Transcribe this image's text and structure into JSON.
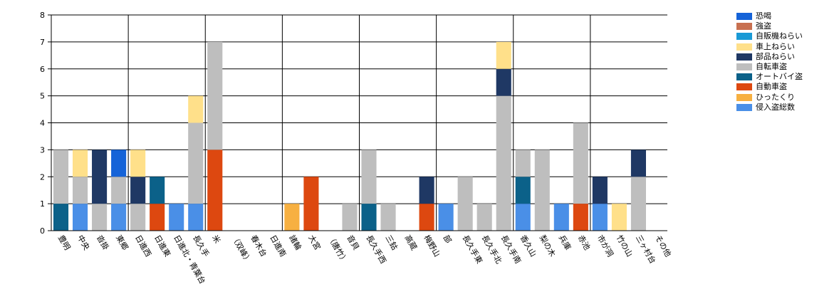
{
  "chart_data": {
    "type": "bar",
    "stacked": true,
    "title": "",
    "xlabel": "",
    "ylabel": "",
    "ylim": [
      0,
      8
    ],
    "yticks": [
      0,
      1,
      2,
      3,
      4,
      5,
      6,
      7,
      8
    ],
    "grid": true,
    "legend_position": "top-right",
    "categories": [
      "豊明",
      "中央",
      "沓掛",
      "東郷",
      "日進西",
      "日進東",
      "日進北・青葉台",
      "長久手",
      "米",
      "（双峰）",
      "春木台",
      "日進南",
      "諸輪",
      "大宮",
      "（唐竹）",
      "音貝",
      "長久手西",
      "三鈷",
      "高蔵",
      "梅野山",
      "部",
      "長久手東",
      "長久手北",
      "長久手南",
      "香久山",
      "梨の木",
      "兵庫",
      "赤池",
      "市が洞",
      "竹の山",
      "三ヶ村台",
      "その他"
    ],
    "series": [
      {
        "name": "侵入盗総数",
        "color": "#4a8fe7",
        "values": [
          0,
          1,
          0,
          1,
          0,
          0,
          1,
          1,
          0,
          0,
          0,
          0,
          0,
          0,
          0,
          0,
          0,
          0,
          0,
          0,
          1,
          0,
          0,
          0,
          1,
          0,
          1,
          0,
          1,
          0,
          0,
          0
        ]
      },
      {
        "name": "ひったくり",
        "color": "#f7b041",
        "values": [
          0,
          0,
          0,
          0,
          0,
          0,
          0,
          0,
          0,
          0,
          0,
          0,
          1,
          0,
          0,
          0,
          0,
          0,
          0,
          0,
          0,
          0,
          0,
          0,
          0,
          0,
          0,
          0,
          0,
          0,
          0,
          0
        ]
      },
      {
        "name": "自動車盗",
        "color": "#dd4810",
        "values": [
          0,
          0,
          0,
          0,
          0,
          1,
          0,
          0,
          3,
          0,
          0,
          0,
          0,
          2,
          0,
          0,
          0,
          0,
          0,
          1,
          0,
          0,
          0,
          0,
          0,
          0,
          0,
          1,
          0,
          0,
          0,
          0
        ]
      },
      {
        "name": "オートバイ盗",
        "color": "#0b6189",
        "values": [
          1,
          0,
          0,
          0,
          0,
          1,
          0,
          0,
          0,
          0,
          0,
          0,
          0,
          0,
          0,
          0,
          1,
          0,
          0,
          0,
          0,
          0,
          0,
          0,
          1,
          0,
          0,
          0,
          0,
          0,
          0,
          0
        ]
      },
      {
        "name": "自転車盗",
        "color": "#bebebe",
        "values": [
          2,
          1,
          1,
          1,
          1,
          0,
          0,
          3,
          4,
          0,
          0,
          0,
          0,
          0,
          0,
          1,
          2,
          1,
          0,
          0,
          0,
          2,
          1,
          5,
          1,
          3,
          0,
          3,
          0,
          0,
          2,
          0
        ]
      },
      {
        "name": "部品ねらい",
        "color": "#1f3864",
        "values": [
          0,
          0,
          2,
          0,
          1,
          0,
          0,
          0,
          0,
          0,
          0,
          0,
          0,
          0,
          0,
          0,
          0,
          0,
          0,
          1,
          0,
          0,
          0,
          1,
          0,
          0,
          0,
          0,
          1,
          0,
          1,
          0
        ]
      },
      {
        "name": "車上ねらい",
        "color": "#ffe08a",
        "values": [
          0,
          1,
          0,
          0,
          1,
          0,
          0,
          1,
          0,
          0,
          0,
          0,
          0,
          0,
          0,
          0,
          0,
          0,
          0,
          0,
          0,
          0,
          0,
          1,
          0,
          0,
          0,
          0,
          0,
          1,
          0,
          0
        ]
      },
      {
        "name": "自販機ねらい",
        "color": "#1a9ad6",
        "values": [
          0,
          0,
          0,
          0,
          0,
          0,
          0,
          0,
          0,
          0,
          0,
          0,
          0,
          0,
          0,
          0,
          0,
          0,
          0,
          0,
          0,
          0,
          0,
          0,
          0,
          0,
          0,
          0,
          0,
          0,
          0,
          0
        ]
      },
      {
        "name": "強盗",
        "color": "#c87050",
        "values": [
          0,
          0,
          0,
          0,
          0,
          0,
          0,
          0,
          0,
          0,
          0,
          0,
          0,
          0,
          0,
          0,
          0,
          0,
          0,
          0,
          0,
          0,
          0,
          0,
          0,
          0,
          0,
          0,
          0,
          0,
          0,
          0
        ]
      },
      {
        "name": "恐喝",
        "color": "#1563d8",
        "values": [
          0,
          0,
          0,
          1,
          0,
          0,
          0,
          0,
          0,
          0,
          0,
          0,
          0,
          0,
          0,
          0,
          0,
          0,
          0,
          0,
          0,
          0,
          0,
          0,
          0,
          0,
          0,
          0,
          0,
          0,
          0,
          0
        ]
      }
    ],
    "legend_order": [
      "恐喝",
      "強盗",
      "自販機ねらい",
      "車上ねらい",
      "部品ねらい",
      "自転車盗",
      "オートバイ盗",
      "自動車盗",
      "ひったくり",
      "侵入盗総数"
    ]
  }
}
